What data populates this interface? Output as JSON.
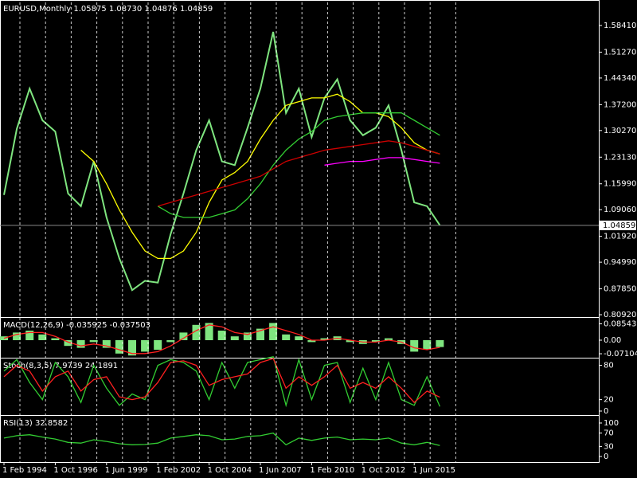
{
  "chart_data": [
    {
      "type": "line",
      "title": "EURUSD,Monthly  1.05875 1.08730 1.04876 1.04859",
      "ylim": [
        0.805,
        1.646
      ],
      "yticks": [
        {
          "value": 1.5841,
          "label": "1.58410"
        },
        {
          "value": 1.5127,
          "label": "1.51270"
        },
        {
          "value": 1.4434,
          "label": "1.44340"
        },
        {
          "value": 1.372,
          "label": "1.37200"
        },
        {
          "value": 1.3027,
          "label": "1.30270"
        },
        {
          "value": 1.2313,
          "label": "1.23130"
        },
        {
          "value": 1.1599,
          "label": "1.15990"
        },
        {
          "value": 1.0906,
          "label": "1.09060"
        },
        {
          "value": 1.0192,
          "label": "1.01920"
        },
        {
          "value": 0.9499,
          "label": "0.94990"
        },
        {
          "value": 0.8785,
          "label": "0.87850"
        },
        {
          "value": 0.8092,
          "label": "0.80920"
        }
      ],
      "last_price": {
        "value": 1.04859,
        "label": "1.04859"
      },
      "series": [
        {
          "color": "#7fe57f",
          "values": [
            1.13,
            1.307,
            1.415,
            1.33,
            1.3,
            1.134,
            1.1,
            1.22,
            1.07,
            0.96,
            0.875,
            0.9,
            0.895,
            1.025,
            1.134,
            1.25,
            1.33,
            1.22,
            1.21,
            1.31,
            1.415,
            1.567,
            1.35,
            1.415,
            1.285,
            1.39,
            1.44,
            1.33,
            1.29,
            1.31,
            1.37,
            1.25,
            1.11,
            1.1,
            1.049
          ]
        },
        {
          "color": "#ffff00",
          "values": [
            null,
            null,
            null,
            null,
            null,
            null,
            1.25,
            1.22,
            1.16,
            1.09,
            1.03,
            0.98,
            0.96,
            0.96,
            0.98,
            1.03,
            1.11,
            1.17,
            1.19,
            1.22,
            1.28,
            1.33,
            1.37,
            1.38,
            1.39,
            1.39,
            1.4,
            1.38,
            1.35,
            1.35,
            1.34,
            1.31,
            1.27,
            1.25,
            1.24
          ]
        },
        {
          "color": "#32cd32",
          "values": [
            null,
            null,
            null,
            null,
            null,
            null,
            null,
            null,
            null,
            null,
            null,
            null,
            1.1,
            1.08,
            1.07,
            1.07,
            1.07,
            1.08,
            1.09,
            1.12,
            1.16,
            1.21,
            1.25,
            1.28,
            1.3,
            1.33,
            1.34,
            1.345,
            1.35,
            1.35,
            1.35,
            1.35,
            1.33,
            1.31,
            1.29
          ]
        },
        {
          "color": "#cc0000",
          "values": [
            null,
            null,
            null,
            null,
            null,
            null,
            null,
            null,
            null,
            null,
            null,
            null,
            1.1,
            1.11,
            1.12,
            1.13,
            1.14,
            1.15,
            1.16,
            1.17,
            1.18,
            1.2,
            1.22,
            1.23,
            1.24,
            1.25,
            1.255,
            1.26,
            1.265,
            1.27,
            1.275,
            1.27,
            1.26,
            1.25,
            1.24
          ]
        },
        {
          "color": "#ff00ff",
          "values": [
            null,
            null,
            null,
            null,
            null,
            null,
            null,
            null,
            null,
            null,
            null,
            null,
            null,
            null,
            null,
            null,
            null,
            null,
            null,
            null,
            null,
            null,
            null,
            null,
            null,
            1.21,
            1.215,
            1.22,
            1.22,
            1.225,
            1.23,
            1.23,
            1.225,
            1.22,
            1.215
          ]
        }
      ]
    },
    {
      "type": "bar",
      "title": "MACD(12,26,9) -0.035925 -0.037503",
      "ylim": [
        -0.0875,
        0.1125
      ],
      "yticks": [
        0.085439,
        {
          "value": 0,
          "label": "0.00"
        },
        -0.071044
      ],
      "series": [
        {
          "color": "#7fe57f",
          "values": [
            0.02,
            0.04,
            0.05,
            0.03,
            0.01,
            -0.03,
            -0.04,
            -0.01,
            -0.04,
            -0.07,
            -0.08,
            -0.06,
            -0.05,
            -0.01,
            0.04,
            0.08,
            0.09,
            0.05,
            0.02,
            0.04,
            0.06,
            0.09,
            0.03,
            0.02,
            -0.01,
            0.01,
            0.02,
            -0.01,
            -0.02,
            -0.01,
            0.01,
            -0.02,
            -0.06,
            -0.05,
            -0.035925
          ]
        },
        {
          "type": "line",
          "color": "#ff2020",
          "values": [
            0.01,
            0.03,
            0.04,
            0.04,
            0.02,
            -0.01,
            -0.03,
            -0.02,
            -0.03,
            -0.05,
            -0.07,
            -0.07,
            -0.06,
            -0.03,
            0.01,
            0.05,
            0.08,
            0.07,
            0.04,
            0.03,
            0.05,
            0.07,
            0.05,
            0.03,
            0.0,
            0.0,
            0.01,
            0.0,
            -0.01,
            -0.01,
            0.0,
            -0.01,
            -0.04,
            -0.05,
            -0.037503
          ]
        }
      ]
    },
    {
      "type": "line",
      "title": "Stoch(8,3,5) 7.9739 24.1891",
      "ylim": [
        -5.6,
        90.6
      ],
      "yticks": [
        80,
        20,
        0
      ],
      "series": [
        {
          "color": "#32cd32",
          "values": [
            70,
            90,
            50,
            20,
            85,
            60,
            15,
            80,
            40,
            10,
            30,
            20,
            80,
            90,
            85,
            70,
            20,
            85,
            40,
            85,
            90,
            95,
            10,
            90,
            20,
            80,
            85,
            15,
            75,
            20,
            85,
            20,
            10,
            60,
            7.9739
          ]
        },
        {
          "color": "#ff2020",
          "values": [
            60,
            80,
            70,
            35,
            60,
            70,
            35,
            55,
            60,
            25,
            20,
            25,
            50,
            85,
            88,
            80,
            45,
            55,
            60,
            65,
            85,
            92,
            40,
            60,
            45,
            60,
            80,
            40,
            50,
            40,
            60,
            40,
            15,
            35,
            24.1891
          ]
        }
      ]
    },
    {
      "type": "line",
      "title": "RSI(13) 32.8582",
      "ylim": [
        -16.7,
        119
      ],
      "yticks": [
        100,
        70,
        30,
        0
      ],
      "grid": true,
      "categories": [
        "1 Feb 1994",
        null,
        null,
        null,
        "1 Oct 1996",
        null,
        null,
        null,
        "1 Jun 1999",
        null,
        null,
        null,
        "1 Feb 2002",
        null,
        null,
        null,
        "1 Oct 2004",
        null,
        null,
        null,
        "1 Jun 2007",
        null,
        null,
        null,
        "1 Feb 2010",
        null,
        null,
        null,
        "1 Oct 2012",
        null,
        null,
        null,
        "1 Jun 2015",
        null,
        null
      ],
      "series": [
        {
          "color": "#32cd32",
          "values": [
            55,
            62,
            65,
            58,
            52,
            42,
            40,
            50,
            45,
            38,
            35,
            36,
            40,
            55,
            60,
            65,
            62,
            50,
            52,
            60,
            62,
            70,
            35,
            55,
            48,
            55,
            58,
            50,
            52,
            50,
            55,
            40,
            35,
            42,
            32.8582
          ]
        }
      ]
    }
  ]
}
